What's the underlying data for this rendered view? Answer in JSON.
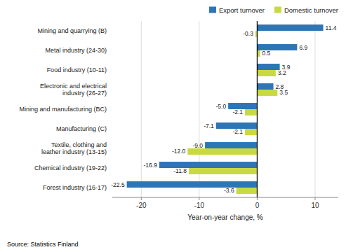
{
  "chart_data": {
    "type": "bar",
    "orientation": "horizontal",
    "categories": [
      "Mining and quarrying (B)",
      "Metal industry (24-30)",
      "Food industry (10-11)",
      "Electronic and electrical\nindustry (26-27)",
      "Mining and manufacturing (BC)",
      "Manufacturing (C)",
      "Textile, clothing and\nleather industry (13-15)",
      "Chemical industry (19-22)",
      "Forest industry (16-17)"
    ],
    "series": [
      {
        "name": "Export turnover",
        "color": "#2E75B6",
        "values": [
          11.4,
          6.9,
          3.9,
          2.8,
          -5.0,
          -7.1,
          -9.0,
          -16.9,
          -22.5
        ],
        "value_labels": [
          "11.4",
          "6.9",
          "3.9",
          "2.8",
          "-5.0",
          "-7.1",
          "-9.0",
          "-16.9",
          "-22.5"
        ]
      },
      {
        "name": "Domestic turnover",
        "color": "#C9D941",
        "values": [
          -0.3,
          0.5,
          3.2,
          3.5,
          -2.1,
          -2.1,
          -12.0,
          -11.8,
          -3.6
        ],
        "value_labels": [
          "-0.3",
          "0.5",
          "3.2",
          "3.5",
          "-2.1",
          "-2.1",
          "-12.0",
          "-11.8",
          "-3.6"
        ]
      }
    ],
    "xlabel": "Year-on-year change, %",
    "xlim": [
      -25,
      14
    ],
    "xticks": [
      -20,
      -10,
      0,
      10
    ],
    "grid": true,
    "data_labels": true,
    "legend": "upper right",
    "annotations": [
      "Source: Statistics Finland"
    ]
  }
}
